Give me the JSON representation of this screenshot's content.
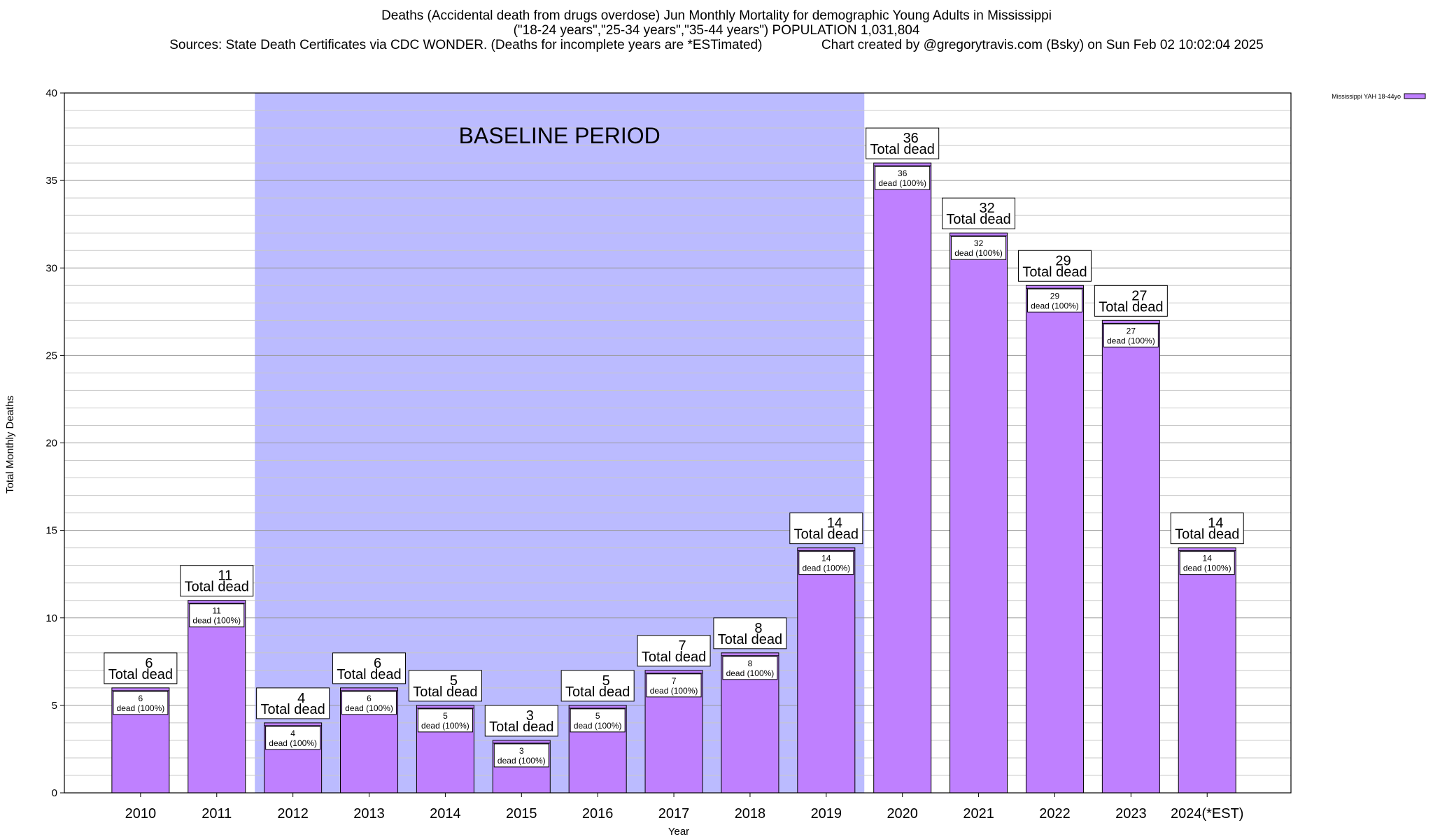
{
  "title_lines": [
    "Deaths (Accidental death from drugs overdose) Jun Monthly Mortality for demographic Young Adults in Mississippi",
    "(\"18-24 years\",\"25-34 years\",\"35-44 years\") POPULATION 1,031,804",
    "Sources: State Death Certificates via CDC WONDER. (Deaths for incomplete years are *ESTimated)                Chart created by @gregorytravis.com (Bsky) on Sun Feb 02 10:02:04 2025"
  ],
  "chart_data": {
    "type": "bar",
    "title": "Deaths (Accidental death from drugs overdose) Jun Monthly Mortality for demographic Young Adults in Mississippi",
    "xlabel": "Year",
    "ylabel": "Total Monthly Deaths",
    "ylim": [
      0,
      40
    ],
    "yticks": [
      0,
      5,
      10,
      15,
      20,
      25,
      30,
      35,
      40
    ],
    "categories": [
      "2010",
      "2011",
      "2012",
      "2013",
      "2014",
      "2015",
      "2016",
      "2017",
      "2018",
      "2019",
      "2020",
      "2021",
      "2022",
      "2023",
      "2024(*EST)"
    ],
    "series": [
      {
        "name": "Mississippi YAH 18-44yo",
        "values": [
          6,
          11,
          4,
          6,
          5,
          3,
          5,
          7,
          8,
          14,
          36,
          32,
          29,
          27,
          14
        ],
        "color": "#bf80ff"
      }
    ],
    "bar_labels_top": [
      "6\nTotal dead",
      "11\nTotal dead",
      "4\nTotal dead",
      "6\nTotal dead",
      "5\nTotal dead",
      "3\nTotal dead",
      "5\nTotal dead",
      "7\nTotal dead",
      "8\nTotal dead",
      "14\nTotal dead",
      "36\nTotal dead",
      "32\nTotal dead",
      "29\nTotal dead",
      "27\nTotal dead",
      "14\nTotal dead"
    ],
    "bar_labels_inner": [
      "6\ndead (100%)",
      "11\ndead (100%)",
      "4\ndead (100%)",
      "6\ndead (100%)",
      "5\ndead (100%)",
      "3\ndead (100%)",
      "5\ndead (100%)",
      "7\ndead (100%)",
      "8\ndead (100%)",
      "14\ndead (100%)",
      "36\ndead (100%)",
      "32\ndead (100%)",
      "29\ndead (100%)",
      "27\ndead (100%)",
      "14\ndead (100%)"
    ],
    "annotation": {
      "text": "BASELINE PERIOD",
      "from_category": "2012",
      "to_category": "2019",
      "color": "#bbbbff"
    },
    "legend": {
      "position": "top-right"
    },
    "grid": true
  }
}
